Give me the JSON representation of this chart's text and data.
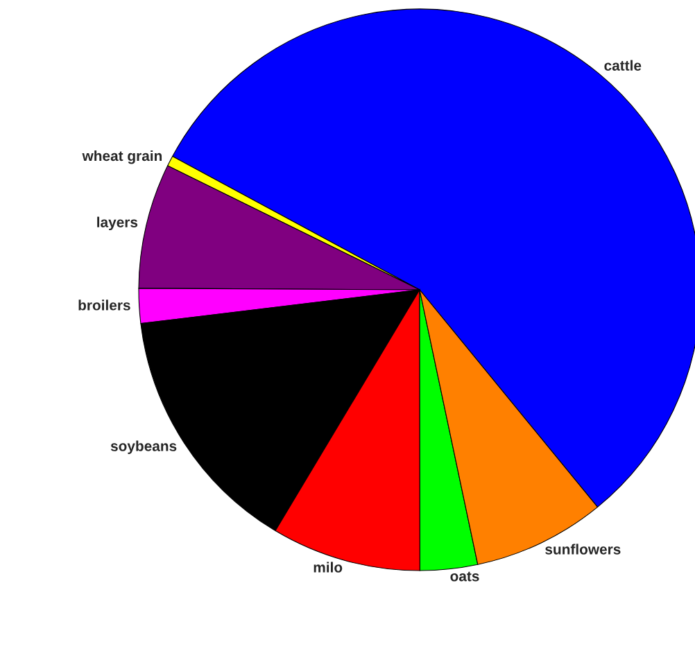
{
  "chart_data": {
    "type": "pie",
    "categories": [
      "cattle",
      "wheat grain",
      "layers",
      "broilers",
      "soybeans",
      "milo",
      "oats",
      "sunflowers"
    ],
    "values": [
      56.2,
      0.6,
      7.2,
      2.0,
      14.5,
      8.6,
      3.3,
      7.6
    ],
    "colors": [
      "#0000ff",
      "#ffff00",
      "#800080",
      "#ff00ff",
      "#000000",
      "#ff0000",
      "#00ff00",
      "#ff8000"
    ]
  }
}
